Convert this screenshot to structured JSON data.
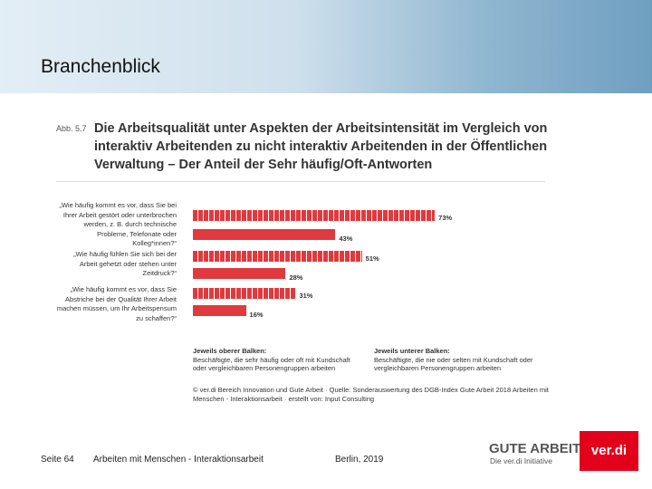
{
  "slide": {
    "title": "Branchenblick",
    "page": "Seite 64",
    "topic": "Arbeiten mit Menschen - Interaktionsarbeit",
    "date": "Berlin, 2019",
    "logo_title": "GUTE ARBEIT",
    "logo_subtitle": "Die ver.di Initiative",
    "verdi": "ver.di"
  },
  "chart_data": {
    "type": "bar",
    "orientation": "horizontal",
    "figure_label": "Abb. 5.7",
    "title": "Die Arbeitsqualität unter Aspekten der Arbeitsintensität im Vergleich von interaktiv Arbeitenden zu nicht interaktiv Arbeitenden in der Öffentlichen Verwaltung – Der Anteil der Sehr häufig/Oft-Antworten",
    "categories": [
      "„Wie häufig kommt es vor, dass Sie bei Ihrer Arbeit gestört oder unterbrochen werden, z. B. durch technische Probleme, Telefonate oder Kolleg*innen?“",
      "„Wie häufig fühlen Sie sich bei der Arbeit gehetzt oder stehen unter Zeitdruck?“",
      "„Wie häufig kommt es vor, dass Sie Abstriche bei der Qualität Ihrer Arbeit machen müssen, um Ihr Arbeitspensum zu schaffen?“"
    ],
    "series": [
      {
        "name": "Jeweils oberer Balken:",
        "description": "Beschäftigte, die sehr häufig oder oft mit Kundschaft oder vergleichbaren Personengruppen arbeiten",
        "color": "#e03a3e",
        "pattern": "striped",
        "values": [
          73,
          51,
          31
        ],
        "value_labels": [
          "73%",
          "51%",
          "31%"
        ]
      },
      {
        "name": "Jeweils unterer Balken:",
        "description": "Beschäftigte, die nie oder selten mit Kundschaft oder vergleichbaren Personengruppen arbeiten",
        "color": "#e03a3e",
        "pattern": "solid",
        "values": [
          43,
          28,
          16
        ],
        "value_labels": [
          "43%",
          "28%",
          "16%"
        ]
      }
    ],
    "source": "© ver.di Bereich Innovation und Gute Arbeit · Quelle: Sonderauswertung des DGB-Index Gute Arbeit 2018 Arbeiten mit Menschen - Interaktionsarbeit · erstellt von: Input Consulting"
  }
}
